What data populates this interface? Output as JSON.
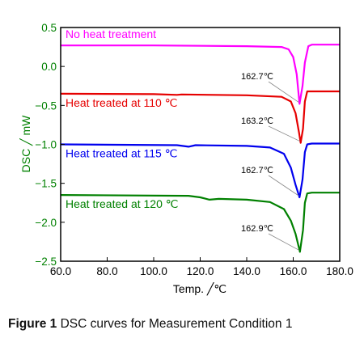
{
  "chart_data": {
    "type": "line",
    "xlabel": "Temp.  ╱℃",
    "ylabel": "DSC  ╱ mW",
    "xlim": [
      60.0,
      180.0
    ],
    "ylim": [
      -2.5,
      0.5
    ],
    "x_ticks": [
      "60.0",
      "80.0",
      "100.0",
      "120.0",
      "140.0",
      "160.0",
      "180.0"
    ],
    "y_ticks": [
      {
        "value": 0.5,
        "label": "0.5"
      },
      {
        "value": 0.0,
        "label": "0.0"
      },
      {
        "value": -0.5,
        "label": "−0.5"
      },
      {
        "value": -1.0,
        "label": "−1.0"
      },
      {
        "value": -1.5,
        "label": "−1.5"
      },
      {
        "value": -2.0,
        "label": "−2.0"
      },
      {
        "value": -2.5,
        "label": "−2.5"
      }
    ],
    "grid": false,
    "series": [
      {
        "name": "No heat treatment",
        "color": "#ff00ff",
        "peak_label": "162.7℃",
        "points": [
          [
            60,
            0.27
          ],
          [
            100,
            0.27
          ],
          [
            140,
            0.26
          ],
          [
            155,
            0.25
          ],
          [
            158,
            0.22
          ],
          [
            160,
            0.12
          ],
          [
            161.5,
            -0.1
          ],
          [
            162.7,
            -0.48
          ],
          [
            164,
            -0.25
          ],
          [
            165,
            0.05
          ],
          [
            166.5,
            0.26
          ],
          [
            168,
            0.28
          ],
          [
            180,
            0.28
          ]
        ]
      },
      {
        "name": "Heat treated at 110 ℃",
        "color": "#e60000",
        "peak_label": "163.2℃",
        "points": [
          [
            60,
            -0.35
          ],
          [
            100,
            -0.355
          ],
          [
            110,
            -0.365
          ],
          [
            112,
            -0.36
          ],
          [
            140,
            -0.37
          ],
          [
            155,
            -0.39
          ],
          [
            159,
            -0.45
          ],
          [
            161,
            -0.6
          ],
          [
            162.5,
            -0.85
          ],
          [
            163.2,
            -0.98
          ],
          [
            164.2,
            -0.8
          ],
          [
            165,
            -0.45
          ],
          [
            166,
            -0.32
          ],
          [
            168,
            -0.32
          ],
          [
            180,
            -0.32
          ]
        ]
      },
      {
        "name": "Heat treated at 115 ℃",
        "color": "#0000ee",
        "peak_label": "162.7℃",
        "points": [
          [
            60,
            -1.0
          ],
          [
            110,
            -1.01
          ],
          [
            115,
            -1.03
          ],
          [
            118,
            -1.01
          ],
          [
            140,
            -1.02
          ],
          [
            150,
            -1.04
          ],
          [
            156,
            -1.12
          ],
          [
            159,
            -1.3
          ],
          [
            161,
            -1.52
          ],
          [
            162.7,
            -1.68
          ],
          [
            164,
            -1.45
          ],
          [
            165,
            -1.1
          ],
          [
            166,
            -1.0
          ],
          [
            168,
            -0.99
          ],
          [
            180,
            -0.99
          ]
        ]
      },
      {
        "name": "Heat treated at 120 ℃",
        "color": "#008000",
        "peak_label": "162.9℃",
        "points": [
          [
            60,
            -1.65
          ],
          [
            115,
            -1.66
          ],
          [
            120,
            -1.68
          ],
          [
            124,
            -1.71
          ],
          [
            128,
            -1.7
          ],
          [
            140,
            -1.71
          ],
          [
            150,
            -1.74
          ],
          [
            156,
            -1.83
          ],
          [
            159,
            -1.98
          ],
          [
            161,
            -2.15
          ],
          [
            162.9,
            -2.38
          ],
          [
            164.2,
            -2.1
          ],
          [
            165,
            -1.75
          ],
          [
            166,
            -1.63
          ],
          [
            168,
            -1.62
          ],
          [
            180,
            -1.62
          ]
        ]
      }
    ]
  },
  "caption": {
    "label": "Figure 1",
    "text": " DSC curves for Measurement Condition 1"
  }
}
